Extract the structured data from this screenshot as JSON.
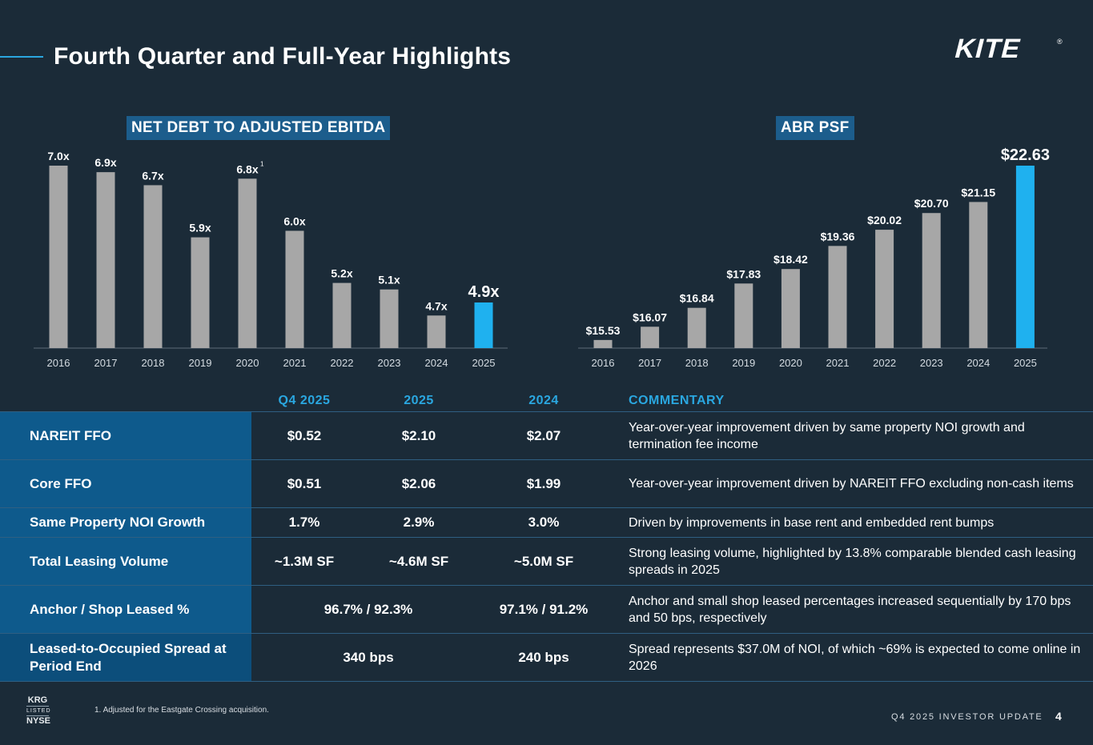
{
  "header": {
    "title": "Fourth Quarter and Full-Year Highlights",
    "logo_text": "KITE",
    "logo_mark": "®"
  },
  "colors": {
    "background": "#1b2b38",
    "accent": "#2aa7e0",
    "bar_gray": "#a7a7a7",
    "bar_highlight": "#1fb1ef",
    "label_panel": "#0e5a8c"
  },
  "chart_data": [
    {
      "type": "bar",
      "title": "NET DEBT TO ADJUSTED EBITDA",
      "categories": [
        "2016",
        "2017",
        "2018",
        "2019",
        "2020",
        "2021",
        "2022",
        "2023",
        "2024",
        "2025"
      ],
      "values": [
        7.0,
        6.9,
        6.7,
        5.9,
        6.8,
        6.0,
        5.2,
        5.1,
        4.7,
        4.9
      ],
      "data_labels": [
        "7.0x",
        "6.9x",
        "6.7x",
        "5.9x",
        "6.8x",
        "6.0x",
        "5.2x",
        "5.1x",
        "4.7x",
        "4.9x"
      ],
      "label_superscripts": [
        "",
        "",
        "",
        "",
        "1",
        "",
        "",
        "",
        "",
        ""
      ],
      "highlight": "2025",
      "ylim": [
        4.2,
        7.0
      ],
      "xlabel": "",
      "ylabel": "",
      "grid": false
    },
    {
      "type": "bar",
      "title": "ABR PSF",
      "categories": [
        "2016",
        "2017",
        "2018",
        "2019",
        "2020",
        "2021",
        "2022",
        "2023",
        "2024",
        "2025"
      ],
      "values": [
        15.53,
        16.07,
        16.84,
        17.83,
        18.42,
        19.36,
        20.02,
        20.7,
        21.15,
        22.63
      ],
      "data_labels": [
        "$15.53",
        "$16.07",
        "$16.84",
        "$17.83",
        "$18.42",
        "$19.36",
        "$20.02",
        "$20.70",
        "$21.15",
        "$22.63"
      ],
      "label_superscripts": [
        "",
        "",
        "",
        "",
        "",
        "",
        "",
        "",
        "",
        ""
      ],
      "highlight": "2025",
      "ylim": [
        15.2,
        22.63
      ],
      "xlabel": "",
      "ylabel": "",
      "grid": false
    }
  ],
  "table": {
    "columns": [
      "Q4 2025",
      "2025",
      "2024",
      "COMMENTARY"
    ],
    "rows": [
      {
        "label": "NAREIT FFO",
        "q4": "$0.52",
        "y2025": "$2.10",
        "y2024": "$2.07",
        "comment": "Year-over-year improvement driven by same property NOI growth and termination fee income"
      },
      {
        "label": "Core FFO",
        "q4": "$0.51",
        "y2025": "$2.06",
        "y2024": "$1.99",
        "comment": "Year-over-year improvement driven by NAREIT FFO excluding non-cash items"
      },
      {
        "label": "Same Property NOI Growth",
        "q4": "1.7%",
        "y2025": "2.9%",
        "y2024": "3.0%",
        "comment": "Driven by improvements in base rent and embedded rent bumps"
      },
      {
        "label": "Total Leasing Volume",
        "q4": "~1.3M SF",
        "y2025": "~4.6M SF",
        "y2024": "~5.0M SF",
        "comment": "Strong leasing volume, highlighted by 13.8% comparable blended cash leasing spreads in 2025"
      },
      {
        "label": "Anchor / Shop Leased %",
        "merged_2025": "96.7% / 92.3%",
        "y2024": "97.1% / 91.2%",
        "comment": "Anchor and small shop leased percentages increased sequentially by 170 bps and 50 bps, respectively"
      },
      {
        "label": "Leased-to-Occupied Spread at Period End",
        "merged_2025": "340 bps",
        "y2024": "240 bps",
        "comment": "Spread represents $37.0M of NOI, of which ~69% is expected to come online in 2026"
      }
    ]
  },
  "footer": {
    "footnote": "1.   Adjusted for the Eastgate Crossing acquisition.",
    "exchange_top": "KRG",
    "exchange_mid": "LISTED",
    "exchange_bot": "NYSE",
    "presentation": "Q4 2025 INVESTOR UPDATE",
    "page_number": "4"
  }
}
